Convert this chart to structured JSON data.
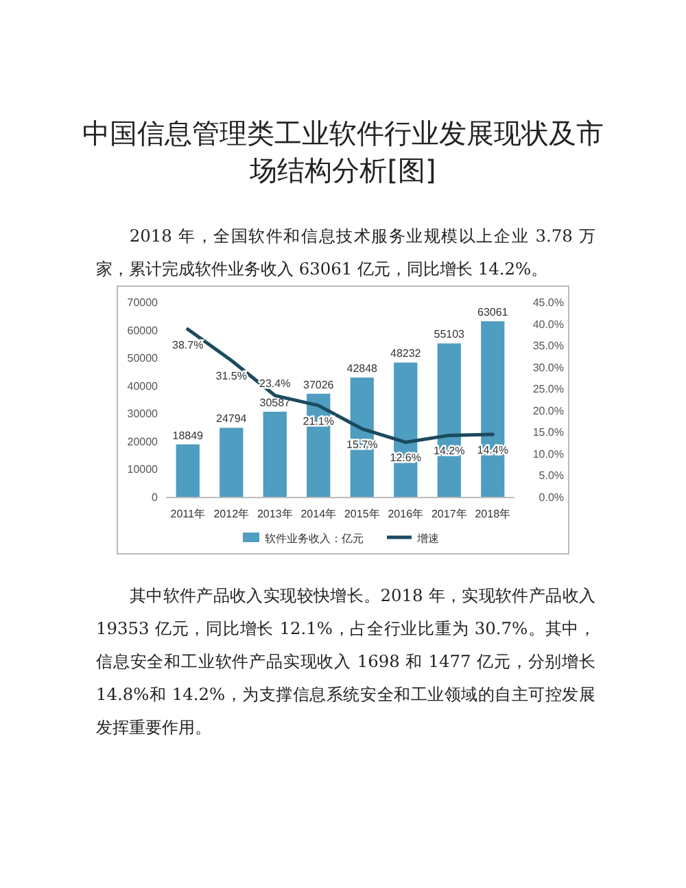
{
  "chart_data": {
    "type": "bar",
    "title": "中国信息管理类工业软件行业发展现状及市场结构分析[图]",
    "categories": [
      "2011年",
      "2012年",
      "2013年",
      "2014年",
      "2015年",
      "2016年",
      "2017年",
      "2018年"
    ],
    "series": [
      {
        "name": "软件业务收入：亿元",
        "color": "#4f9dc0",
        "values": [
          18849,
          24794,
          30587,
          37026,
          42848,
          48232,
          55103,
          63061
        ]
      },
      {
        "name": "增速",
        "type": "line",
        "axis": "y2",
        "color": "#1b4a5e",
        "values": [
          38.7,
          31.5,
          23.4,
          21.1,
          15.7,
          12.6,
          14.2,
          14.4
        ],
        "value_labels": [
          "38.7%",
          "31.5%",
          "23.4%",
          "21.1%",
          "15.7%",
          "12.6%",
          "14.2%",
          "14.4%"
        ]
      }
    ],
    "ylim": [
      0,
      70000
    ],
    "yticks": [
      0,
      10000,
      20000,
      30000,
      40000,
      50000,
      60000,
      70000
    ],
    "y2lim": [
      0,
      45
    ],
    "y2ticks": [
      {
        "value": 0,
        "label": "0.0%"
      },
      {
        "value": 5,
        "label": "5.0%"
      },
      {
        "value": 10,
        "label": "10.0%"
      },
      {
        "value": 15,
        "label": "15.0%"
      },
      {
        "value": 20,
        "label": "20.0%"
      },
      {
        "value": 25,
        "label": "25.0%"
      },
      {
        "value": 30,
        "label": "30.0%"
      },
      {
        "value": 35,
        "label": "35.0%"
      },
      {
        "value": 40,
        "label": "40.0%"
      },
      {
        "value": 45,
        "label": "45.0%"
      }
    ],
    "data_labels": true,
    "legend": "bottom",
    "annotations": [
      "2018 年，全国软件和信息技术服务业规模以上企业 3.78 万家，累计完成软件业务收入 63061 亿元，同比增长 14.2%。",
      "其中软件产品收入实现较快增长。2018 年，实现软件产品收入 19353 亿元，同比增长 12.1%，占全行业比重为 30.7%。其中，信息安全和工业软件产品实现收入 1698 和 1477 亿元，分别增长 14.8%和 14.2%，为支撑信息系统安全和工业领域的自主可控发展发挥重要作用。"
    ]
  }
}
